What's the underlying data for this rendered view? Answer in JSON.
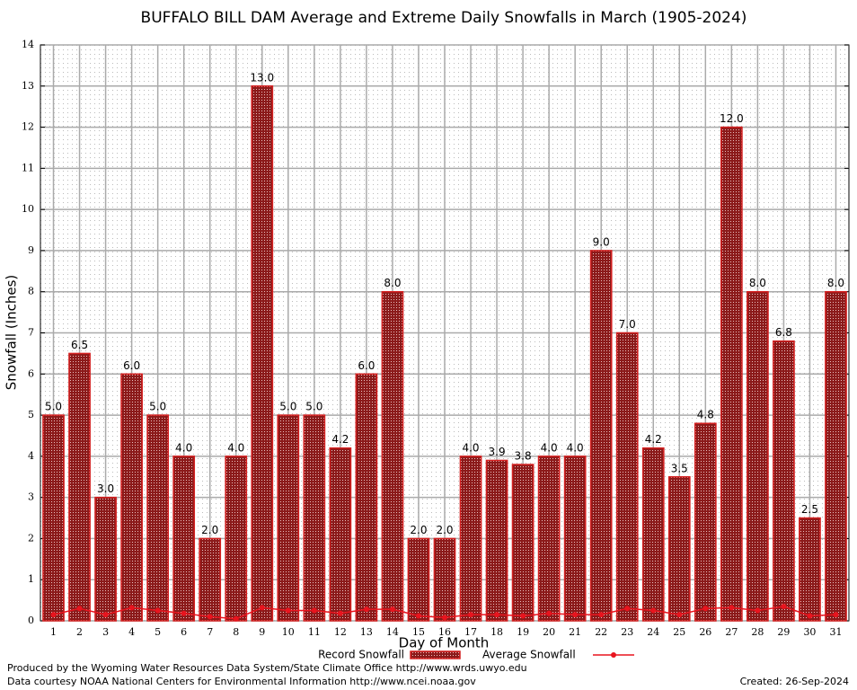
{
  "chart_data": {
    "type": "bar",
    "title": "BUFFALO BILL DAM Average and Extreme Daily Snowfalls in March (1905-2024)",
    "xlabel": "Day of Month",
    "ylabel": "Snowfall (Inches)",
    "categories": [
      "1",
      "2",
      "3",
      "4",
      "5",
      "6",
      "7",
      "8",
      "9",
      "10",
      "11",
      "12",
      "13",
      "14",
      "15",
      "16",
      "17",
      "18",
      "19",
      "20",
      "21",
      "22",
      "23",
      "24",
      "25",
      "26",
      "27",
      "28",
      "29",
      "30",
      "31"
    ],
    "series": [
      {
        "name": "Record Snowfall",
        "type": "bar",
        "color": "#8b1a1a",
        "values": [
          5,
          6.5,
          3,
          6,
          5,
          4,
          2,
          4,
          13,
          5,
          5,
          4.2,
          6,
          8,
          2,
          2,
          4,
          3.9,
          3.8,
          4,
          4,
          9,
          7,
          4.2,
          3.5,
          4.8,
          12,
          8,
          6.8,
          2.5,
          8
        ],
        "value_labels": [
          "5.0",
          "6.5",
          "3.0",
          "6.0",
          "5.0",
          "4.0",
          "2.0",
          "4.0",
          "13.0",
          "5.0",
          "5.0",
          "4.2",
          "6.0",
          "8.0",
          "2.0",
          "2.0",
          "4.0",
          "3.9",
          "3.8",
          "4.0",
          "4.0",
          "9.0",
          "7.0",
          "4.2",
          "3.5",
          "4.8",
          "12.0",
          "8.0",
          "6.8",
          "2.5",
          "8.0"
        ]
      },
      {
        "name": "Average Snowfall",
        "type": "line",
        "color": "#e8141e",
        "values": [
          0.15,
          0.3,
          0.15,
          0.32,
          0.25,
          0.18,
          0.1,
          0.05,
          0.32,
          0.25,
          0.25,
          0.18,
          0.28,
          0.28,
          0.12,
          0.08,
          0.15,
          0.15,
          0.12,
          0.18,
          0.15,
          0.15,
          0.3,
          0.25,
          0.15,
          0.3,
          0.32,
          0.25,
          0.35,
          0.12,
          0.15
        ]
      }
    ],
    "ylim": [
      0,
      14
    ],
    "yticks": [
      0,
      1,
      2,
      3,
      4,
      5,
      6,
      7,
      8,
      9,
      10,
      11,
      12,
      13,
      14
    ],
    "grid": true,
    "footer": {
      "credit": "Produced by the Wyoming Water Resources Data System/State Climate Office http://www.wrds.uwyo.edu",
      "source": "Data courtesy NOAA National Centers for Environmental Information http://www.ncei.noaa.gov",
      "created": "Created:  26-Sep-2024"
    }
  }
}
